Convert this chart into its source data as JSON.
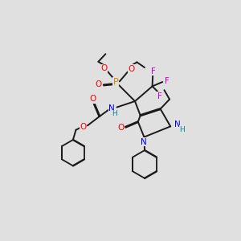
{
  "background_color": "#e0e0e0",
  "bond_color": "#1a1a1a",
  "colors": {
    "O": "#ff0000",
    "N": "#0000dd",
    "P": "#cc8800",
    "F": "#cc00cc",
    "H_label": "#008888",
    "C": "#1a1a1a"
  },
  "figsize": [
    3.0,
    3.0
  ],
  "dpi": 100
}
